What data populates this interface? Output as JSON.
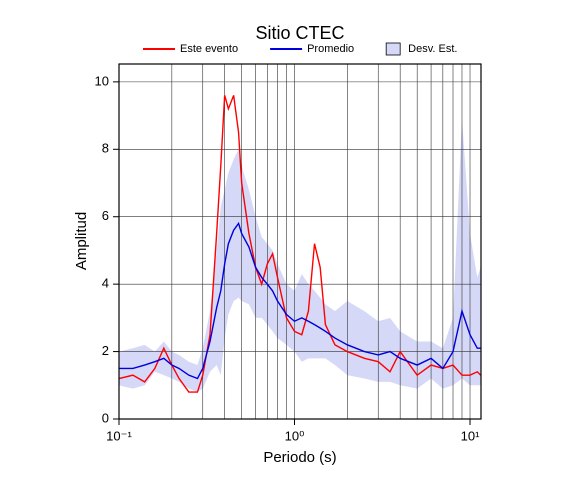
{
  "chart_data": {
    "type": "line",
    "title": "Sitio CTEC",
    "xlabel": "Periodo (s)",
    "ylabel": "Amplitud",
    "xscale": "log",
    "xlim": [
      0.1,
      11.55
    ],
    "ylim": [
      0,
      10.53
    ],
    "xticks": [
      {
        "value": 0.1,
        "label": "10⁻¹"
      },
      {
        "value": 1,
        "label": "10⁰"
      },
      {
        "value": 10,
        "label": "10¹"
      }
    ],
    "xgrid": [
      0.2,
      0.3,
      0.4,
      0.5,
      0.6,
      0.7,
      0.8,
      0.9,
      2,
      3,
      4,
      5,
      6,
      7,
      8,
      9
    ],
    "yticks": [
      0,
      2,
      4,
      6,
      8,
      10
    ],
    "grid": true,
    "x": [
      0.1,
      0.12,
      0.14,
      0.16,
      0.18,
      0.2,
      0.22,
      0.25,
      0.28,
      0.3,
      0.33,
      0.36,
      0.38,
      0.4,
      0.42,
      0.45,
      0.48,
      0.5,
      0.55,
      0.6,
      0.65,
      0.7,
      0.75,
      0.8,
      0.9,
      1.0,
      1.1,
      1.2,
      1.3,
      1.4,
      1.5,
      1.7,
      2,
      2.5,
      3,
      3.5,
      4,
      5,
      6,
      7,
      8,
      9,
      10,
      11,
      11.5
    ],
    "band": {
      "name": "Desv. Est.",
      "color": "#d6d8f8",
      "lower": [
        1.0,
        0.9,
        1.0,
        1.4,
        1.3,
        1.2,
        1.1,
        0.9,
        0.8,
        0.9,
        1.4,
        1.6,
        1.3,
        2.4,
        3.1,
        3.5,
        3.6,
        3.5,
        3.4,
        3.0,
        3.0,
        2.8,
        2.6,
        2.4,
        2.2,
        2.0,
        1.7,
        1.8,
        1.8,
        1.8,
        1.8,
        1.6,
        1.3,
        1.2,
        1.1,
        1.1,
        1.0,
        0.9,
        1.2,
        0.9,
        1.0,
        1.2,
        1.0,
        1.0,
        1.0
      ],
      "upper": [
        2.0,
        2.1,
        2.2,
        2.0,
        2.3,
        2.0,
        1.9,
        1.7,
        1.6,
        2.1,
        3.2,
        5.0,
        6.3,
        6.8,
        7.3,
        7.7,
        8.0,
        7.5,
        6.8,
        6.0,
        5.4,
        5.2,
        5.0,
        4.6,
        4.0,
        3.8,
        4.3,
        4.0,
        3.8,
        3.6,
        3.4,
        3.2,
        3.5,
        3.2,
        2.9,
        3.0,
        2.6,
        2.3,
        2.3,
        2.1,
        3.0,
        8.9,
        5.5,
        4.2,
        4.5
      ]
    },
    "series": [
      {
        "name": "Este evento",
        "color": "#ff0000",
        "values": [
          1.2,
          1.3,
          1.1,
          1.5,
          2.1,
          1.6,
          1.2,
          0.8,
          0.8,
          1.3,
          2.5,
          5.5,
          7.5,
          9.6,
          9.2,
          9.6,
          8.5,
          7.0,
          5.5,
          4.5,
          4.0,
          4.6,
          4.9,
          4.2,
          3.0,
          2.6,
          2.5,
          3.2,
          5.2,
          4.5,
          2.8,
          2.2,
          2.0,
          1.8,
          1.7,
          1.4,
          2.0,
          1.3,
          1.6,
          1.5,
          1.6,
          1.3,
          1.3,
          1.4,
          1.3
        ]
      },
      {
        "name": "Promedio",
        "color": "#0000dd",
        "values": [
          1.5,
          1.5,
          1.6,
          1.7,
          1.8,
          1.6,
          1.5,
          1.3,
          1.2,
          1.5,
          2.3,
          3.3,
          3.8,
          4.6,
          5.2,
          5.6,
          5.8,
          5.5,
          5.1,
          4.5,
          4.2,
          4.0,
          3.8,
          3.5,
          3.1,
          2.9,
          3.0,
          2.9,
          2.8,
          2.7,
          2.6,
          2.4,
          2.2,
          2.0,
          1.9,
          2.0,
          1.8,
          1.6,
          1.8,
          1.5,
          2.0,
          3.2,
          2.5,
          2.1,
          2.1
        ]
      }
    ]
  }
}
